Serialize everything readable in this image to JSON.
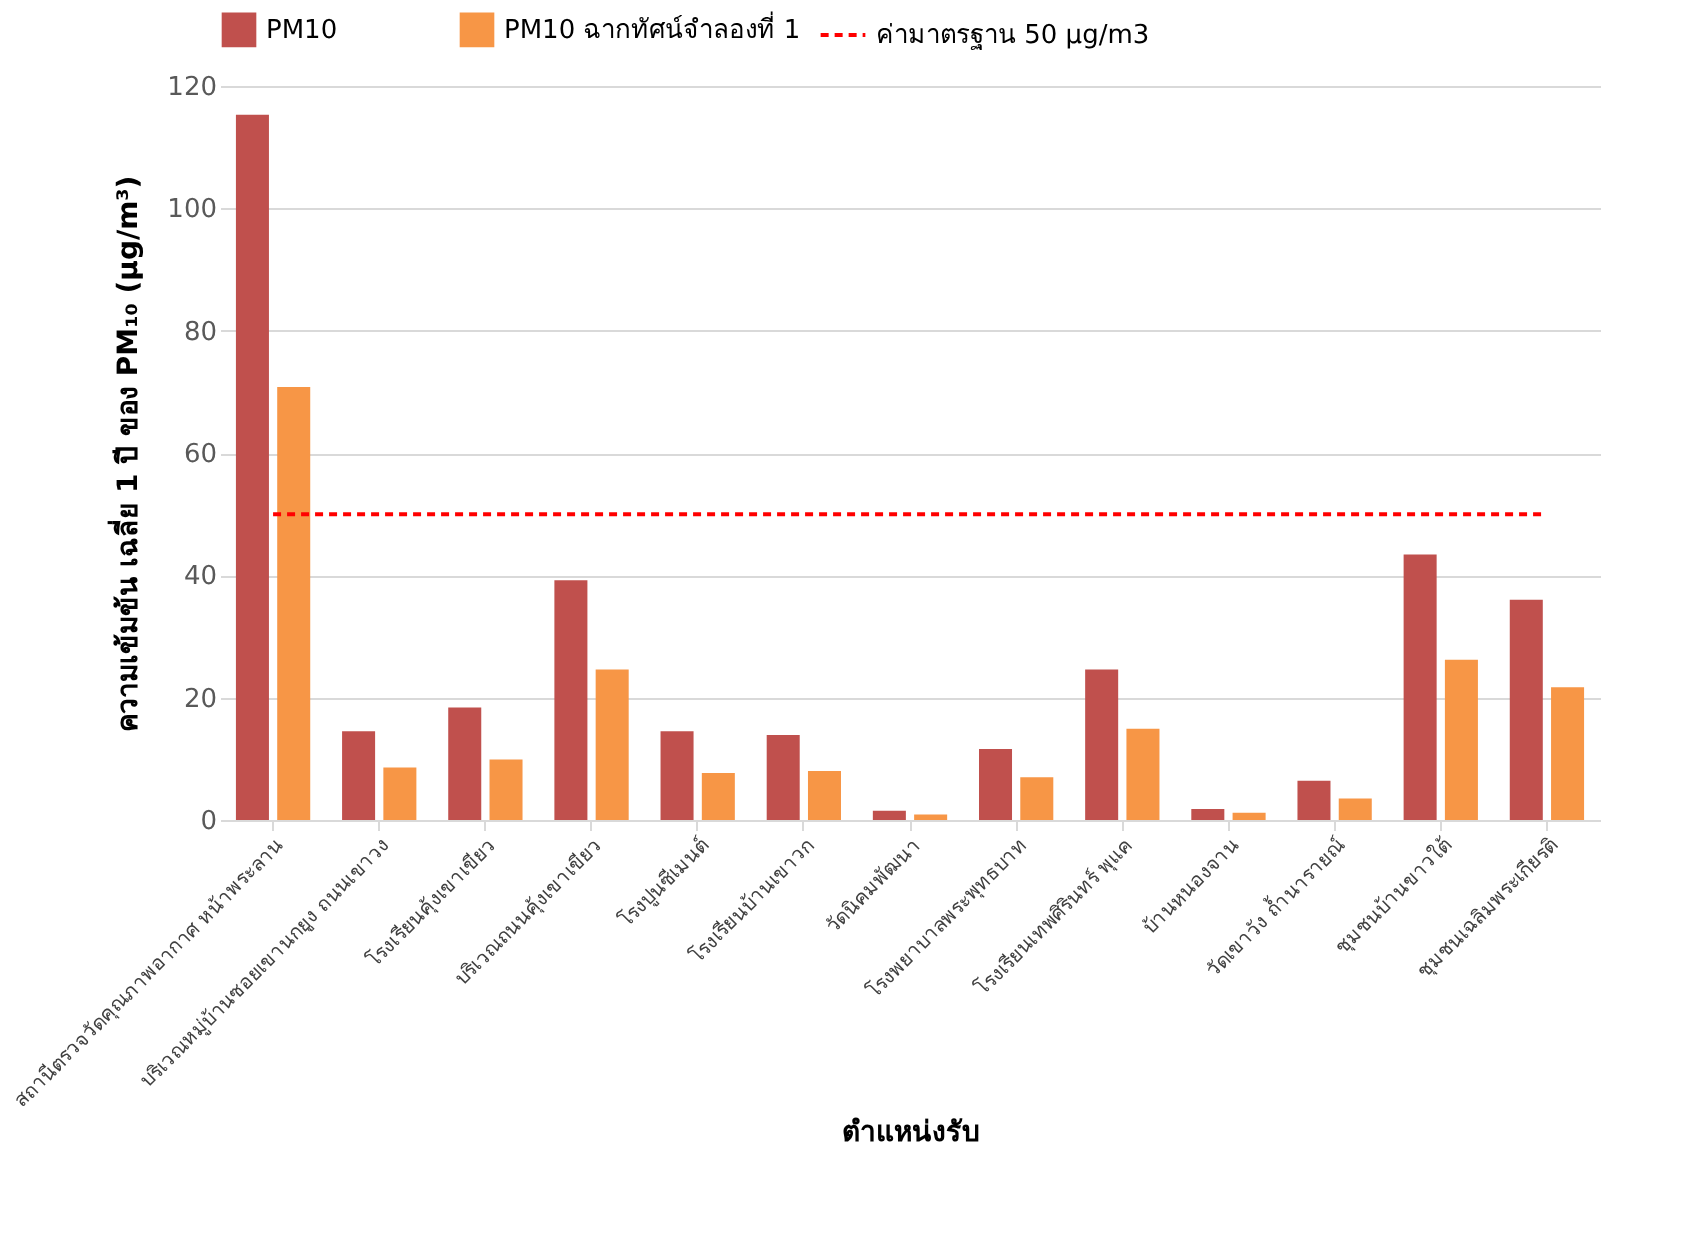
{
  "chart_data": {
    "type": "bar",
    "categories": [
      "สถานีตรวจวัดคุณภาพอากาศ หน้าพระลาน",
      "บริเวณหมู่บ้านซอยเขานกยูง ถนนเขาวง",
      "โรงเรียนคุ้งเขาเขียว",
      "บริเวณถนนคุ้งเขาเขียว",
      "โรงปูนซีเมนต์",
      "โรงเรียนบ้านเขาวก",
      "วัดนิคมพัฒนา",
      "โรงพยาบาลพระพุทธบาท",
      "โรงเรียนเทพศิรินทร์ พุแค",
      "บ้านหนองจาน",
      "วัดเขาวัง ถ้ำนารายณ์",
      "ชุมชนบ้านขาวใต้",
      "ชุมชนเฉลิมพระเกียรติ"
    ],
    "series": [
      {
        "name": "PM10",
        "color": "#c0504d",
        "values": [
          115.3,
          14.5,
          18.4,
          39.2,
          14.5,
          13.9,
          1.5,
          11.6,
          24.6,
          1.8,
          6.4,
          43.4,
          36.0
        ]
      },
      {
        "name": "PM10 ฉากทัศน์จำลองที่ 1",
        "color": "#f79646",
        "values": [
          70.8,
          8.6,
          9.9,
          24.6,
          7.7,
          8.0,
          0.9,
          7.0,
          14.9,
          1.2,
          3.5,
          26.2,
          21.7
        ]
      }
    ],
    "ref_lines": [
      {
        "axis": "y",
        "value": 50,
        "label": "ค่ามาตรฐาน 50 µg/m3",
        "color": "#ff0000",
        "line_style": "dashed"
      }
    ],
    "xlabel": "ตำแหน่งรับ",
    "ylabel": "ความเข้มข้น เฉลี่ย 1 ปี  ของ PM₁₀ (µg/m³)",
    "ylim": [
      0,
      120
    ],
    "yticks": [
      0,
      20,
      40,
      60,
      80,
      100,
      120
    ],
    "grid": "y",
    "legend": "top"
  }
}
